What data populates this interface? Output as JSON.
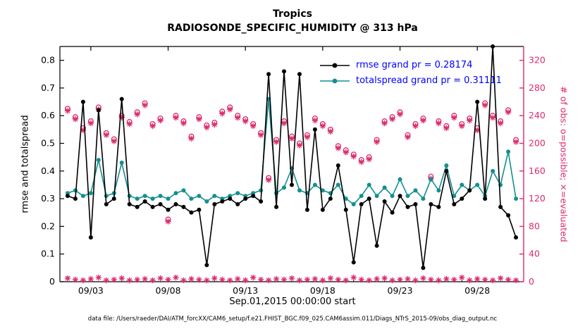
{
  "title": {
    "line1": "Tropics",
    "line2": "RADIOSONDE_SPECIFIC_HUMIDITY @ 313 hPa"
  },
  "xlabel": "Sep.01,2015 00:00:00 start",
  "ylabel_left": "rmse and totalspread",
  "ylabel_right": "# of obs: o=possible; ×=evaluated",
  "footer": "data file: /Users/raeder/DAI/ATM_forcXX/CAM6_setup/f.e21.FHIST_BGC.f09_025.CAM6assim.011/Diags_NTrS_2015-09/obs_diag_output.nc",
  "legend": [
    {
      "label": "rmse grand pr = 0.28174",
      "series": "rmse"
    },
    {
      "label": "totalspread grand pr = 0.31111",
      "series": "totalspread"
    }
  ],
  "colors": {
    "rmse": "#000000",
    "totalspread": "#148f8f",
    "obs": "#dc2a6e",
    "legend_text": "#0000ff",
    "axis": "#000000"
  },
  "chart_data": {
    "type": "line",
    "title": "Tropics — RADIOSONDE_SPECIFIC_HUMIDITY @ 313 hPa",
    "x_axis": {
      "min": 0,
      "max": 30,
      "label": "Sep.01,2015 00:00:00 start",
      "ticks": [
        {
          "day": 2,
          "label": "09/03"
        },
        {
          "day": 7,
          "label": "09/08"
        },
        {
          "day": 12,
          "label": "09/13"
        },
        {
          "day": 17,
          "label": "09/18"
        },
        {
          "day": 22,
          "label": "09/23"
        },
        {
          "day": 27,
          "label": "09/28"
        }
      ],
      "minor_step": 1
    },
    "left_axis": {
      "min": 0,
      "max": 0.85,
      "label": "rmse and totalspread",
      "ticks": [
        0,
        0.1,
        0.2,
        0.3,
        0.4,
        0.5,
        0.6,
        0.7,
        0.8
      ]
    },
    "right_axis": {
      "min": 0,
      "max": 340,
      "label": "# of obs: o=possible; ×=evaluated",
      "ticks": [
        0,
        40,
        80,
        120,
        160,
        200,
        240,
        280,
        320
      ]
    },
    "x_days": [
      0.5,
      1.0,
      1.5,
      2.0,
      2.5,
      3.0,
      3.5,
      4.0,
      4.5,
      5.0,
      5.5,
      6.0,
      6.5,
      7.0,
      7.5,
      8.0,
      8.5,
      9.0,
      9.5,
      10.0,
      10.5,
      11.0,
      11.5,
      12.0,
      12.5,
      13.0,
      13.5,
      14.0,
      14.5,
      15.0,
      15.5,
      16.0,
      16.5,
      17.0,
      17.5,
      18.0,
      18.5,
      19.0,
      19.5,
      20.0,
      20.5,
      21.0,
      21.5,
      22.0,
      22.5,
      23.0,
      23.5,
      24.0,
      24.5,
      25.0,
      25.5,
      26.0,
      26.5,
      27.0,
      27.5,
      28.0,
      28.5,
      29.0,
      29.5
    ],
    "series": [
      {
        "name": "obs_possible",
        "axis": "right",
        "marker": "circle",
        "line": false,
        "color": "#dc2a6e",
        "values": [
          250,
          238,
          222,
          232,
          252,
          215,
          206,
          240,
          231,
          245,
          258,
          228,
          236,
          90,
          240,
          232,
          210,
          238,
          226,
          230,
          246,
          252,
          240,
          235,
          228,
          215,
          150,
          205,
          232,
          210,
          200,
          212,
          236,
          228,
          220,
          196,
          190,
          184,
          176,
          180,
          205,
          232,
          238,
          245,
          212,
          228,
          236,
          152,
          232,
          225,
          240,
          228,
          236,
          222,
          258,
          240,
          232,
          248,
          205
        ]
      },
      {
        "name": "obs_evaluated",
        "axis": "right",
        "marker": "asterisk",
        "line": false,
        "color": "#dc2a6e",
        "values": [
          247,
          235,
          219,
          229,
          249,
          212,
          203,
          237,
          228,
          242,
          255,
          225,
          233,
          87,
          237,
          229,
          207,
          235,
          223,
          227,
          243,
          249,
          237,
          232,
          225,
          212,
          147,
          202,
          229,
          207,
          197,
          209,
          233,
          225,
          217,
          193,
          187,
          181,
          173,
          177,
          202,
          229,
          235,
          242,
          209,
          225,
          233,
          149,
          229,
          222,
          237,
          225,
          233,
          219,
          255,
          237,
          229,
          245,
          202
        ]
      },
      {
        "name": "obs_bottom_row",
        "axis": "right",
        "marker": "asterisk",
        "line": false,
        "color": "#dc2a6e",
        "values": [
          5,
          3,
          2,
          4,
          6,
          2,
          3,
          5,
          2,
          3,
          4,
          2,
          5,
          3,
          6,
          2,
          4,
          3,
          2,
          5,
          3,
          2,
          4,
          2,
          6,
          3,
          2,
          4,
          3,
          5,
          2,
          3,
          4,
          2,
          5,
          3,
          2,
          6,
          3,
          2,
          4,
          5,
          2,
          3,
          4,
          2,
          5,
          3,
          2,
          4,
          3,
          6,
          2,
          4,
          3,
          2,
          5,
          3,
          2
        ]
      },
      {
        "name": "totalspread",
        "axis": "left",
        "marker": "dot",
        "line": true,
        "color": "#148f8f",
        "grand_pr": 0.31111,
        "values": [
          0.32,
          0.33,
          0.31,
          0.32,
          0.44,
          0.31,
          0.32,
          0.43,
          0.31,
          0.3,
          0.31,
          0.3,
          0.31,
          0.3,
          0.32,
          0.33,
          0.3,
          0.31,
          0.29,
          0.31,
          0.3,
          0.31,
          0.32,
          0.31,
          0.32,
          0.33,
          0.66,
          0.32,
          0.34,
          0.41,
          0.33,
          0.32,
          0.35,
          0.33,
          0.32,
          0.35,
          0.3,
          0.28,
          0.31,
          0.35,
          0.31,
          0.34,
          0.31,
          0.37,
          0.31,
          0.33,
          0.3,
          0.37,
          0.33,
          0.42,
          0.31,
          0.35,
          0.33,
          0.35,
          0.31,
          0.4,
          0.35,
          0.47,
          0.3
        ]
      },
      {
        "name": "rmse",
        "axis": "left",
        "marker": "dot",
        "line": true,
        "color": "#000000",
        "grand_pr": 0.28174,
        "values": [
          0.31,
          0.3,
          0.65,
          0.16,
          0.62,
          0.28,
          0.3,
          0.66,
          0.28,
          0.27,
          0.29,
          0.27,
          0.28,
          0.26,
          0.28,
          0.27,
          0.25,
          0.26,
          0.06,
          0.28,
          0.29,
          0.3,
          0.28,
          0.3,
          0.31,
          0.29,
          0.75,
          0.27,
          0.76,
          0.35,
          0.75,
          0.26,
          0.55,
          0.26,
          0.3,
          0.42,
          0.26,
          0.07,
          0.28,
          0.3,
          0.13,
          0.29,
          0.25,
          0.31,
          0.27,
          0.28,
          0.05,
          0.28,
          0.27,
          0.4,
          0.28,
          0.3,
          0.33,
          0.65,
          0.3,
          0.85,
          0.27,
          0.24,
          0.16
        ]
      }
    ]
  }
}
